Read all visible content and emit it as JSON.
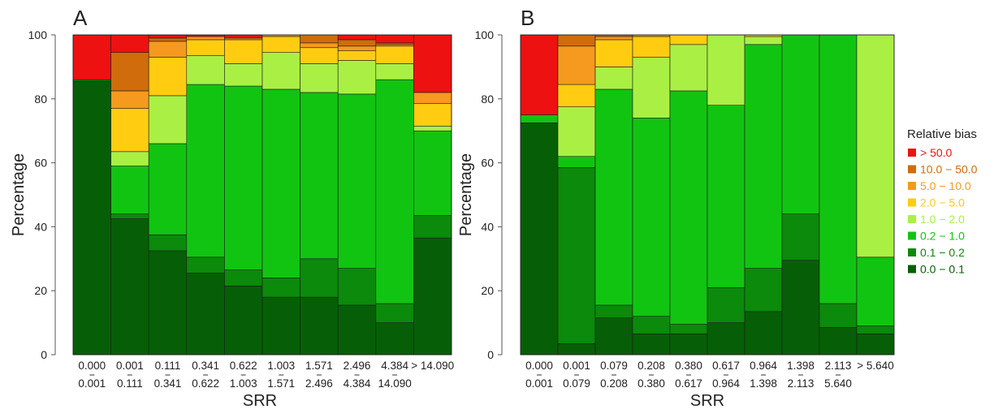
{
  "chart_data": [
    {
      "type": "bar",
      "stacked": true,
      "panel_label": "A",
      "xlabel": "SRR",
      "ylabel": "Percentage",
      "ylim": [
        0,
        100
      ],
      "yticks": [
        0,
        20,
        40,
        60,
        80,
        100
      ],
      "categories": [
        {
          "top": "0.000",
          "bottom": "0.001"
        },
        {
          "top": "0.001",
          "bottom": "0.111"
        },
        {
          "top": "0.111",
          "bottom": "0.341"
        },
        {
          "top": "0.341",
          "bottom": "0.622"
        },
        {
          "top": "0.622",
          "bottom": "1.003"
        },
        {
          "top": "1.003",
          "bottom": "1.571"
        },
        {
          "top": "1.571",
          "bottom": "2.496"
        },
        {
          "top": "2.496",
          "bottom": "4.384"
        },
        {
          "top": "4.384",
          "bottom": "14.090"
        },
        {
          "top": "> 14.090",
          "bottom": ""
        }
      ],
      "series": [
        {
          "name": "0.0 − 0.1",
          "color": "#065f06",
          "values": [
            85.5,
            42.5,
            32.5,
            25.5,
            21.5,
            18.0,
            18.0,
            15.5,
            10.0,
            36.5
          ]
        },
        {
          "name": "0.1 − 0.2",
          "color": "#0b8a0b",
          "values": [
            0.5,
            1.5,
            5.0,
            5.0,
            5.0,
            6.0,
            12.0,
            11.5,
            6.0,
            7.0
          ]
        },
        {
          "name": "0.2 − 1.0",
          "color": "#12c412",
          "values": [
            0.0,
            15.0,
            28.5,
            54.0,
            57.5,
            59.0,
            52.0,
            54.5,
            70.0,
            26.5
          ]
        },
        {
          "name": "1.0 − 2.0",
          "color": "#aaf044",
          "values": [
            0.0,
            4.5,
            15.0,
            9.0,
            7.0,
            11.5,
            9.0,
            10.5,
            5.0,
            1.5
          ]
        },
        {
          "name": "2.0 − 5.0",
          "color": "#ffcc12",
          "values": [
            0.0,
            13.5,
            12.0,
            5.0,
            7.5,
            5.0,
            5.0,
            3.0,
            5.5,
            7.0
          ]
        },
        {
          "name": "5.0 − 10.0",
          "color": "#f59a1e",
          "values": [
            0.0,
            5.5,
            5.0,
            1.0,
            0.5,
            0.5,
            1.5,
            1.5,
            0.5,
            3.5
          ]
        },
        {
          "name": "10.0 − 50.0",
          "color": "#d06c0c",
          "values": [
            0.0,
            12.0,
            1.0,
            0.0,
            0.0,
            0.0,
            2.5,
            2.0,
            0.5,
            0.0
          ]
        },
        {
          "name": "> 50.0",
          "color": "#ee1111",
          "values": [
            14.0,
            5.5,
            1.0,
            0.5,
            1.0,
            0.0,
            0.0,
            1.5,
            2.5,
            18.0
          ]
        }
      ]
    },
    {
      "type": "bar",
      "stacked": true,
      "panel_label": "B",
      "xlabel": "SRR",
      "ylabel": "Percentage",
      "ylim": [
        0,
        100
      ],
      "yticks": [
        0,
        20,
        40,
        60,
        80,
        100
      ],
      "categories": [
        {
          "top": "0.000",
          "bottom": "0.001"
        },
        {
          "top": "0.001",
          "bottom": "0.079"
        },
        {
          "top": "0.079",
          "bottom": "0.208"
        },
        {
          "top": "0.208",
          "bottom": "0.380"
        },
        {
          "top": "0.380",
          "bottom": "0.617"
        },
        {
          "top": "0.617",
          "bottom": "0.964"
        },
        {
          "top": "0.964",
          "bottom": "1.398"
        },
        {
          "top": "1.398",
          "bottom": "2.113"
        },
        {
          "top": "2.113",
          "bottom": "5.640"
        },
        {
          "top": "> 5.640",
          "bottom": ""
        }
      ],
      "series": [
        {
          "name": "0.0 − 0.1",
          "color": "#065f06",
          "values": [
            72.5,
            3.5,
            11.5,
            6.5,
            6.5,
            10.0,
            13.5,
            29.5,
            8.5,
            6.5
          ]
        },
        {
          "name": "0.1 − 0.2",
          "color": "#0b8a0b",
          "values": [
            0.0,
            55.0,
            4.0,
            5.5,
            3.0,
            11.0,
            13.5,
            14.5,
            7.5,
            2.5
          ]
        },
        {
          "name": "0.2 − 1.0",
          "color": "#12c412",
          "values": [
            2.5,
            3.5,
            67.5,
            62.0,
            73.0,
            57.0,
            70.0,
            56.0,
            84.0,
            21.5
          ]
        },
        {
          "name": "1.0 − 2.0",
          "color": "#aaf044",
          "values": [
            0.0,
            15.5,
            7.0,
            19.0,
            14.5,
            22.0,
            2.5,
            0.0,
            0.0,
            69.5
          ]
        },
        {
          "name": "2.0 − 5.0",
          "color": "#ffcc12",
          "values": [
            0.0,
            7.0,
            8.5,
            6.5,
            3.0,
            0.0,
            0.5,
            0.0,
            0.0,
            0.0
          ]
        },
        {
          "name": "5.0 − 10.0",
          "color": "#f59a1e",
          "values": [
            0.0,
            12.0,
            1.0,
            0.5,
            0.0,
            0.0,
            0.0,
            0.0,
            0.0,
            0.0
          ]
        },
        {
          "name": "10.0 − 50.0",
          "color": "#d06c0c",
          "values": [
            0.0,
            3.5,
            0.5,
            0.0,
            0.0,
            0.0,
            0.0,
            0.0,
            0.0,
            0.0
          ]
        },
        {
          "name": "> 50.0",
          "color": "#ee1111",
          "values": [
            25.0,
            0.0,
            0.0,
            0.0,
            0.0,
            0.0,
            0.0,
            0.0,
            0.0,
            0.0
          ]
        }
      ]
    }
  ],
  "legend": {
    "title": "Relative bias",
    "items": [
      {
        "label": "> 50.0",
        "color": "#ee1111"
      },
      {
        "label": "10.0 − 50.0",
        "color": "#d06c0c"
      },
      {
        "label": "5.0 − 10.0",
        "color": "#f59a1e"
      },
      {
        "label": "2.0 − 5.0",
        "color": "#ffcc12"
      },
      {
        "label": "1.0 − 2.0",
        "color": "#aaf044"
      },
      {
        "label": "0.2 − 1.0",
        "color": "#12c412"
      },
      {
        "label": "0.1 − 0.2",
        "color": "#0b8a0b"
      },
      {
        "label": "0.0 − 0.1",
        "color": "#065f06"
      }
    ]
  }
}
